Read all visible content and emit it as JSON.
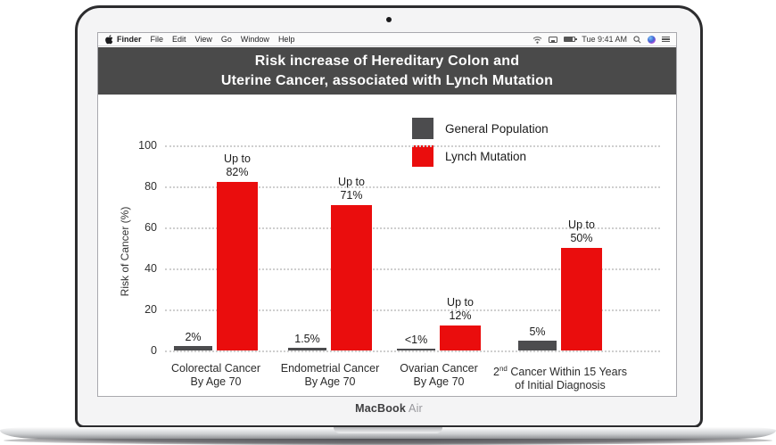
{
  "menu_bar": {
    "apple_icon": "apple-logo",
    "items": [
      "Finder",
      "File",
      "Edit",
      "View",
      "Go",
      "Window",
      "Help"
    ],
    "status": {
      "icons": [
        "wifi-icon",
        "display-icon",
        "battery-icon",
        "search-icon",
        "siri-icon",
        "notification-list-icon"
      ],
      "time": "Tue 9:41 AM"
    }
  },
  "title": {
    "line1": "Risk increase of Hereditary Colon and",
    "line2": "Uterine Cancer, associated with Lynch Mutation"
  },
  "chart_data": {
    "type": "bar",
    "title": "Risk increase of Hereditary Colon and Uterine Cancer, associated with Lynch Mutation",
    "xlabel": "",
    "ylabel": "Risk of Cancer (%)",
    "ylim": [
      0,
      100
    ],
    "yticks": [
      0,
      20,
      40,
      60,
      80,
      100
    ],
    "grid": true,
    "legend_position": "top-right",
    "categories": [
      {
        "lines": [
          "Colorectal Cancer",
          "By Age 70"
        ]
      },
      {
        "lines": [
          "Endometrial Cancer",
          "By Age 70"
        ]
      },
      {
        "lines": [
          "Ovarian Cancer",
          "By Age 70"
        ]
      },
      {
        "lines": [
          "2nd Cancer Within 15 Years",
          "of Initial Diagnosis"
        ],
        "superscript": "nd"
      }
    ],
    "series": [
      {
        "name": "General Population",
        "color": "#4c4c4e",
        "values": [
          2,
          1.5,
          1,
          5
        ],
        "value_labels": [
          "2%",
          "1.5%",
          "<1%",
          "5%"
        ]
      },
      {
        "name": "Lynch Mutation",
        "color": "#ea0d0d",
        "values": [
          82,
          71,
          12,
          50
        ],
        "value_labels": [
          "Up to\n82%",
          "Up to\n71%",
          "Up to\n12%",
          "Up to\n50%"
        ]
      }
    ]
  },
  "laptop": {
    "brand": "MacBook",
    "brand_light": "Air"
  },
  "colors": {
    "title_band": "#4a4a4a",
    "bar_gray": "#4c4c4e",
    "bar_red": "#ea0d0d",
    "gridline": "#cfcfcf"
  }
}
